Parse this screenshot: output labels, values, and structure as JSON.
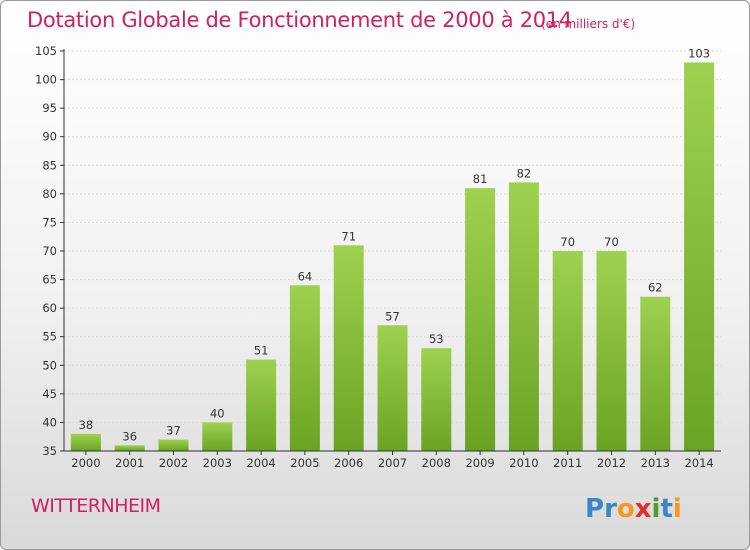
{
  "colors": {
    "title": "#d02060",
    "bar_top": "#9fd150",
    "bar_bottom": "#6aa323",
    "axis": "#333333",
    "grid": "#d9d9d9"
  },
  "title": "Dotation Globale de Fonctionnement de 2000 à 2014",
  "unit_note": "(en milliers d'€)",
  "commune": "WITTERNHEIM",
  "logo": {
    "text": "Proxiti"
  },
  "chart_data": {
    "type": "bar",
    "title": "Dotation Globale de Fonctionnement de 2000 à 2014",
    "subtitle": "(en milliers d'€)",
    "xlabel": "",
    "ylabel": "",
    "categories": [
      "2000",
      "2001",
      "2002",
      "2003",
      "2004",
      "2005",
      "2006",
      "2007",
      "2008",
      "2009",
      "2010",
      "2011",
      "2012",
      "2013",
      "2014"
    ],
    "values": [
      38,
      36,
      37,
      40,
      51,
      64,
      71,
      57,
      53,
      81,
      82,
      70,
      70,
      62,
      103
    ],
    "ylim": [
      35,
      105
    ],
    "yticks": [
      35,
      40,
      45,
      50,
      55,
      60,
      65,
      70,
      75,
      80,
      85,
      90,
      95,
      100,
      105
    ],
    "grid": "horizontal dashed",
    "legend": "none"
  }
}
